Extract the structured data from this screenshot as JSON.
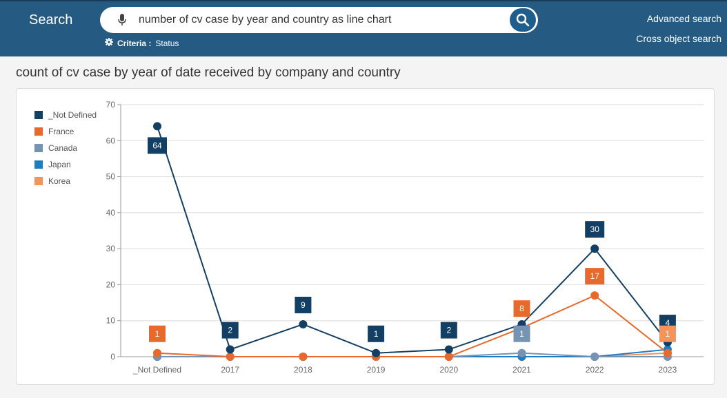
{
  "header": {
    "brand": "Search",
    "search_query": "number of cv case by year and country as line chart",
    "criteria_label": "Criteria :",
    "criteria_value": "Status",
    "advanced_search": "Advanced search",
    "cross_object_search": "Cross object search"
  },
  "colors": {
    "header_bg": "#255b82",
    "not_defined": "#123f63",
    "france": "#e8692c",
    "canada": "#7593b2",
    "japan": "#1e7bc4",
    "korea": "#f4945d"
  },
  "chart_data": {
    "type": "line",
    "title": "count of cv case by year of date received by company and country",
    "xlabel": "",
    "ylabel": "",
    "ylim": [
      0,
      70
    ],
    "yticks": [
      0,
      10,
      20,
      30,
      40,
      50,
      60,
      70
    ],
    "grid": true,
    "legend_position": "left",
    "categories": [
      "_Not Defined",
      "2017",
      "2018",
      "2019",
      "2020",
      "2021",
      "2022",
      "2023"
    ],
    "series": [
      {
        "name": "_Not Defined",
        "color": "#123f63",
        "values": [
          64,
          2,
          9,
          1,
          2,
          9,
          30,
          4
        ],
        "labels": [
          "64",
          "2",
          "9",
          "1",
          "2",
          "",
          "30",
          "4"
        ]
      },
      {
        "name": "France",
        "color": "#e8692c",
        "values": [
          1,
          0,
          0,
          0,
          0,
          8,
          17,
          1
        ],
        "labels": [
          "1",
          "",
          "",
          "",
          "",
          "8",
          "17",
          ""
        ]
      },
      {
        "name": "Canada",
        "color": "#7593b2",
        "values": [
          0,
          0,
          0,
          0,
          0,
          1,
          0,
          0
        ],
        "labels": [
          "",
          "",
          "",
          "",
          "",
          "1",
          "",
          ""
        ]
      },
      {
        "name": "Japan",
        "color": "#1e7bc4",
        "values": [
          0,
          0,
          0,
          0,
          0,
          0,
          0,
          2
        ],
        "labels": [
          "",
          "",
          "",
          "",
          "",
          "",
          "",
          ""
        ]
      },
      {
        "name": "Korea",
        "color": "#f4945d",
        "values": [
          0,
          0,
          0,
          0,
          0,
          0,
          0,
          1
        ],
        "labels": [
          "",
          "",
          "",
          "",
          "",
          "",
          "",
          "1"
        ]
      }
    ]
  }
}
